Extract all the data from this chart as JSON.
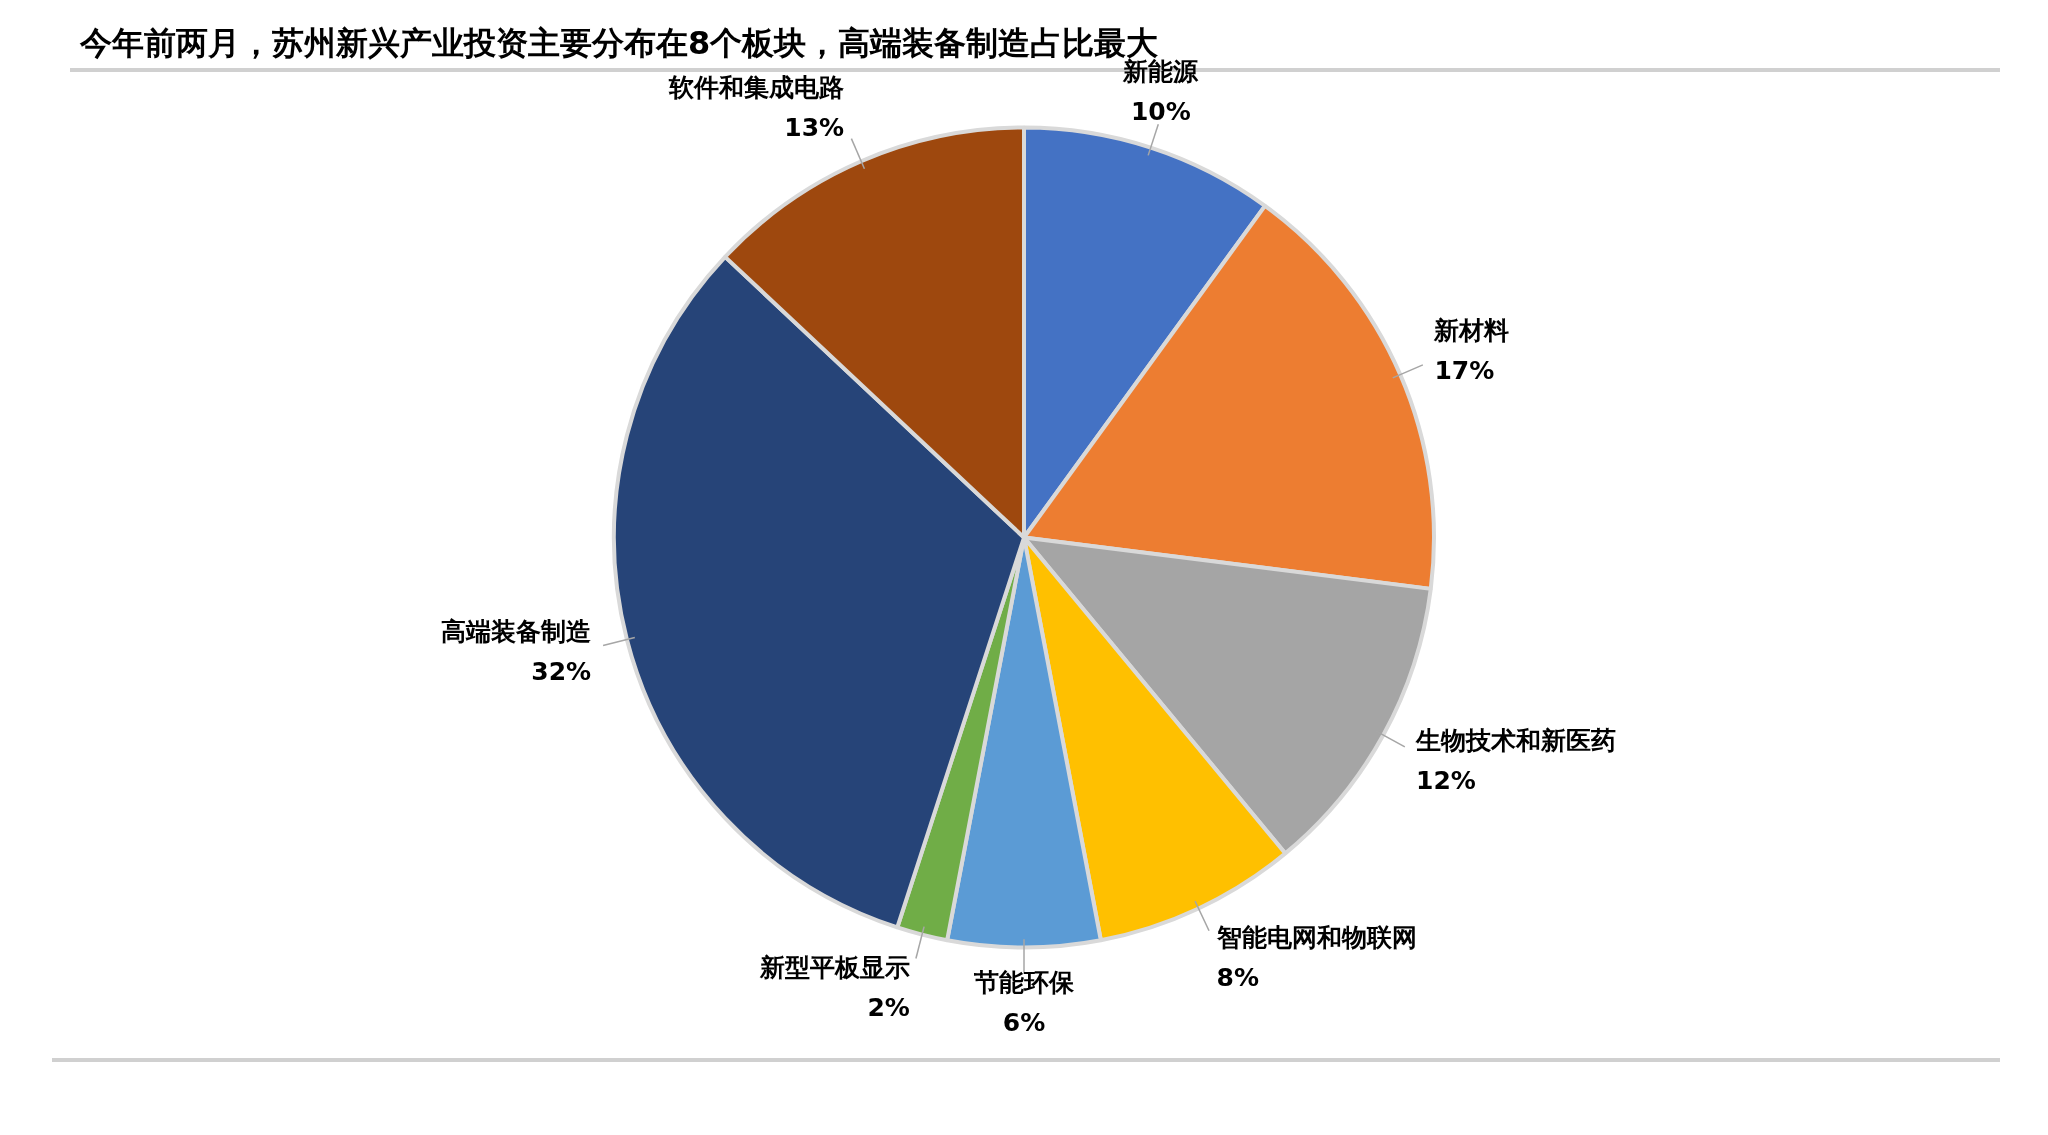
{
  "chart_data": {
    "type": "pie",
    "title": "今年前两月，苏州新兴产业投资主要分布在8个板块，高端装备制造占比最大",
    "categories": [
      "新能源",
      "新材料",
      "生物技术和新医药",
      "智能电网和物联网",
      "节能环保",
      "新型平板显示",
      "高端装备制造",
      "软件和集成电路"
    ],
    "values": [
      10,
      17,
      12,
      8,
      6,
      2,
      32,
      13
    ],
    "colors": [
      "#4472c4",
      "#ed7d31",
      "#a5a5a5",
      "#ffc000",
      "#5b9bd5",
      "#70ad47",
      "#264478",
      "#9e480e"
    ],
    "value_labels": [
      "10%",
      "17%",
      "12%",
      "8%",
      "6%",
      "2%",
      "32%",
      "13%"
    ],
    "legend": false
  }
}
